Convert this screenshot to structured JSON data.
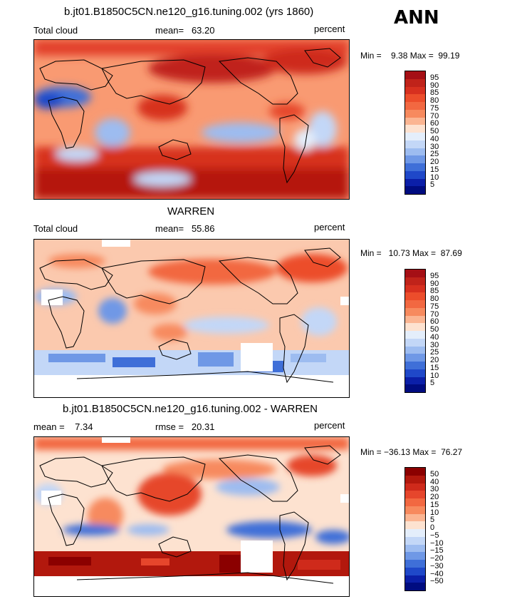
{
  "season": "ANN",
  "panels": [
    {
      "title": "b.jt01.B1850C5CN.ne120_g16.tuning.002 (yrs 1860)",
      "left_label": "Total cloud",
      "center_label": "mean=   63.20",
      "units": "percent",
      "minmax": "Min =    9.38 Max =  99.19",
      "legend": [
        "95",
        "90",
        "85",
        "80",
        "75",
        "70",
        "60",
        "50",
        "40",
        "30",
        "25",
        "20",
        "15",
        "10",
        "5"
      ],
      "colors": [
        "#a50f15",
        "#c0231a",
        "#d7301f",
        "#ec4d2b",
        "#f26841",
        "#f78a5e",
        "#fbb592",
        "#fde2d0",
        "#e4eefb",
        "#c3d7f7",
        "#9dbcf0",
        "#6f98e6",
        "#3f6fd8",
        "#1f48c9",
        "#0b1fa8",
        "#000c80"
      ]
    },
    {
      "title": "WARREN",
      "left_label": "Total cloud",
      "center_label": "mean=   55.86",
      "units": "percent",
      "minmax": "Min =   10.73 Max =  87.69",
      "legend": [
        "95",
        "90",
        "85",
        "80",
        "75",
        "70",
        "60",
        "50",
        "40",
        "30",
        "25",
        "20",
        "15",
        "10",
        "5"
      ],
      "colors": [
        "#a50f15",
        "#c0231a",
        "#d7301f",
        "#ec4d2b",
        "#f26841",
        "#f78a5e",
        "#fbb592",
        "#fde2d0",
        "#e4eefb",
        "#c3d7f7",
        "#9dbcf0",
        "#6f98e6",
        "#3f6fd8",
        "#1f48c9",
        "#0b1fa8",
        "#000c80"
      ]
    },
    {
      "title": "b.jt01.B1850C5CN.ne120_g16.tuning.002 - WARREN",
      "left_label": "mean =    7.34",
      "center_label": "rmse =   20.31",
      "units": "percent",
      "minmax": "Min = −36.13 Max =  76.27",
      "legend": [
        "50",
        "40",
        "30",
        "20",
        "15",
        "10",
        "5",
        "0",
        "−5",
        "−10",
        "−15",
        "−20",
        "−30",
        "−40",
        "−50"
      ],
      "colors": [
        "#8b0000",
        "#b2180d",
        "#cf2a1b",
        "#e6462c",
        "#f26841",
        "#f78a5e",
        "#fbb592",
        "#fde2d0",
        "#e4eefb",
        "#c3d7f7",
        "#9dbcf0",
        "#6f98e6",
        "#3f6fd8",
        "#1f48c9",
        "#0b1fa8",
        "#000c80"
      ]
    }
  ]
}
